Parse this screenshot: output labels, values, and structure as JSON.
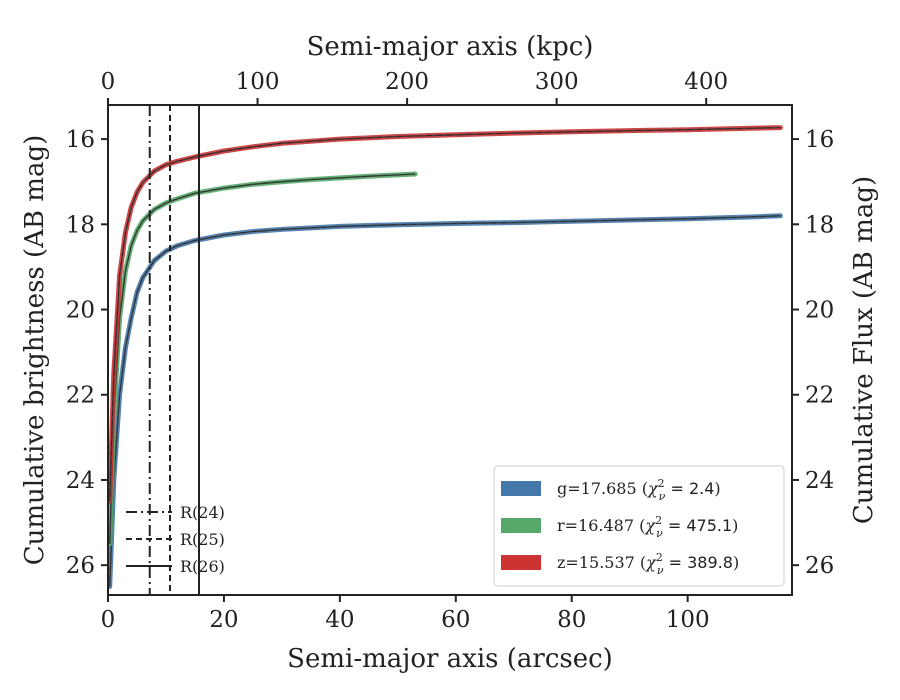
{
  "chart_data": {
    "type": "line",
    "xlabel_bottom": "Semi-major axis (arcsec)",
    "xlabel_top": "Semi-major axis (kpc)",
    "ylabel_left": "Cumulative brightness (AB mag)",
    "ylabel_right": "Cumulative Flux (AB mag)",
    "xlim": [
      0,
      118
    ],
    "ylim": [
      26.7,
      15.2
    ],
    "y_inverted": true,
    "x_ticks_bottom": [
      0,
      20,
      40,
      60,
      80,
      100
    ],
    "x_ticks_top": [
      0,
      100,
      200,
      300,
      400
    ],
    "top_axis_scale_kpc_per_arcsec": 3.876,
    "y_ticks": [
      16,
      18,
      20,
      22,
      24,
      26
    ],
    "grid": false,
    "vlines": [
      {
        "name": "R(24)",
        "x": 7.2,
        "style": "dashdot"
      },
      {
        "name": "R(25)",
        "x": 10.7,
        "style": "dashed"
      },
      {
        "name": "R(26)",
        "x": 15.7,
        "style": "solid"
      }
    ],
    "series": [
      {
        "key": "g",
        "name": "g=17.685",
        "chi": "2.4",
        "color": "#4477aa",
        "x": [
          0.3,
          1,
          2,
          3,
          4,
          5,
          6,
          8,
          10,
          12,
          15,
          20,
          25,
          30,
          40,
          50,
          60,
          70,
          80,
          90,
          100,
          110,
          116
        ],
        "y": [
          26.5,
          24.0,
          22.0,
          20.9,
          20.2,
          19.6,
          19.25,
          18.85,
          18.63,
          18.5,
          18.38,
          18.25,
          18.17,
          18.12,
          18.05,
          18.01,
          17.98,
          17.96,
          17.93,
          17.9,
          17.87,
          17.83,
          17.8
        ]
      },
      {
        "key": "r",
        "name": "r=16.487",
        "chi": "475.1",
        "color": "#55a868",
        "x": [
          0.3,
          1,
          2,
          3,
          4,
          5,
          6,
          8,
          10,
          12,
          15,
          20,
          25,
          30,
          35,
          40,
          45,
          50,
          53
        ],
        "y": [
          25.5,
          22.5,
          20.2,
          19.1,
          18.5,
          18.15,
          17.92,
          17.65,
          17.5,
          17.4,
          17.27,
          17.15,
          17.06,
          17.0,
          16.95,
          16.91,
          16.87,
          16.84,
          16.82
        ]
      },
      {
        "key": "z",
        "name": "z=15.537",
        "chi": "389.8",
        "color": "#cc3333",
        "x": [
          0.3,
          1,
          2,
          3,
          4,
          5,
          6,
          8,
          10,
          12,
          15,
          20,
          25,
          30,
          40,
          50,
          60,
          70,
          80,
          90,
          100,
          110,
          116
        ],
        "y": [
          24.5,
          21.5,
          19.2,
          18.2,
          17.6,
          17.25,
          17.02,
          16.75,
          16.6,
          16.52,
          16.42,
          16.28,
          16.18,
          16.1,
          16.0,
          15.94,
          15.9,
          15.86,
          15.83,
          15.8,
          15.78,
          15.75,
          15.73
        ]
      }
    ]
  }
}
